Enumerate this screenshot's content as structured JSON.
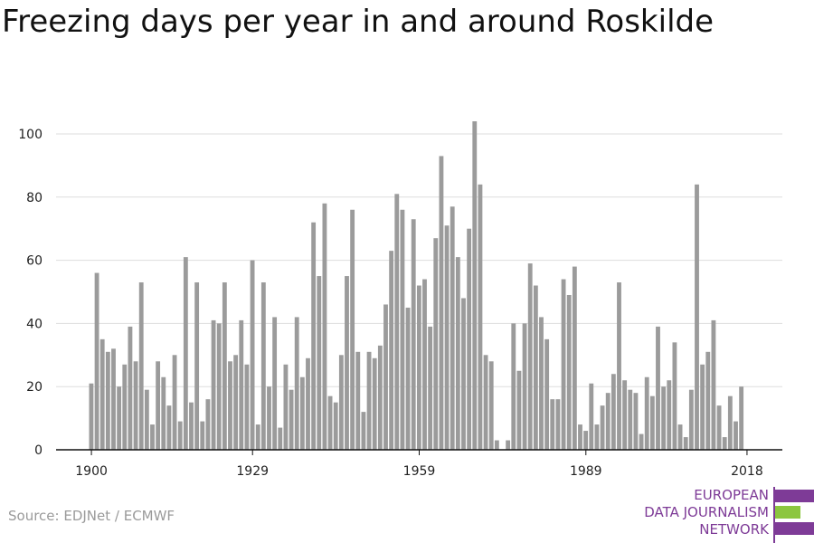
{
  "title": "Freezing days per year in and around Roskilde",
  "source": "Source: EDJNet / ECMWF",
  "logo": {
    "lines": [
      "EUROPEAN",
      "DATA JOURNALISM",
      "NETWORK"
    ],
    "colors": {
      "purple": "#7e3b97",
      "green": "#8cc63f"
    }
  },
  "colors": {
    "bar": "#9b9b9b",
    "grid": "#dddddd",
    "axis": "#111111"
  },
  "chart_data": {
    "type": "bar",
    "title": "Freezing days per year in and around Roskilde",
    "xlabel": "",
    "ylabel": "",
    "ylim": [
      0,
      100
    ],
    "yticks": [
      0,
      20,
      40,
      60,
      80,
      100
    ],
    "xticks": [
      1900,
      1929,
      1959,
      1989,
      2018
    ],
    "grid": true,
    "years": [
      1900,
      1901,
      1902,
      1903,
      1904,
      1905,
      1906,
      1907,
      1908,
      1909,
      1910,
      1911,
      1912,
      1913,
      1914,
      1915,
      1916,
      1917,
      1918,
      1919,
      1920,
      1921,
      1922,
      1923,
      1924,
      1925,
      1926,
      1927,
      1928,
      1929,
      1930,
      1931,
      1932,
      1933,
      1934,
      1935,
      1936,
      1937,
      1938,
      1939,
      1940,
      1941,
      1942,
      1943,
      1944,
      1945,
      1946,
      1947,
      1948,
      1949,
      1950,
      1951,
      1952,
      1953,
      1954,
      1955,
      1956,
      1957,
      1958,
      1959,
      1960,
      1961,
      1962,
      1963,
      1964,
      1965,
      1966,
      1967,
      1968,
      1969,
      1970,
      1971,
      1972,
      1973,
      1974,
      1975,
      1976,
      1977,
      1978,
      1979,
      1980,
      1981,
      1982,
      1983,
      1984,
      1985,
      1986,
      1987,
      1988,
      1989,
      1990,
      1991,
      1992,
      1993,
      1994,
      1995,
      1996,
      1997,
      1998,
      1999,
      2000,
      2001,
      2002,
      2003,
      2004,
      2005,
      2006,
      2007,
      2008,
      2009,
      2010,
      2011,
      2012,
      2013,
      2014,
      2015,
      2016,
      2017,
      2018
    ],
    "values": [
      21,
      56,
      35,
      31,
      32,
      20,
      27,
      39,
      28,
      53,
      19,
      8,
      28,
      23,
      14,
      30,
      9,
      61,
      15,
      53,
      9,
      16,
      41,
      40,
      53,
      28,
      30,
      41,
      27,
      60,
      8,
      53,
      20,
      42,
      7,
      27,
      19,
      42,
      23,
      29,
      72,
      55,
      78,
      17,
      15,
      30,
      55,
      76,
      31,
      12,
      31,
      29,
      33,
      46,
      63,
      81,
      76,
      45,
      73,
      52,
      54,
      39,
      67,
      93,
      71,
      77,
      61,
      48,
      70,
      104,
      84,
      30,
      28,
      3,
      0,
      3,
      40,
      25,
      40,
      59,
      52,
      42,
      35,
      16,
      16,
      54,
      49,
      58,
      8,
      6,
      21,
      8,
      14,
      18,
      24,
      53,
      22,
      19,
      18,
      5,
      23,
      17,
      39,
      20,
      22,
      34,
      8,
      4,
      19,
      84,
      27,
      31,
      41,
      14,
      4,
      17,
      9,
      20,
      0
    ]
  }
}
